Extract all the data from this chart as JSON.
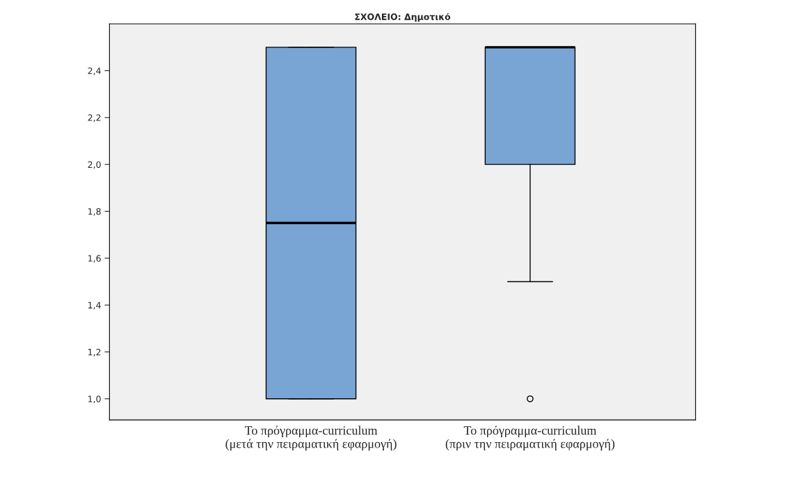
{
  "chart_data": {
    "type": "box",
    "title": "ΣΧΟΛΕΙΟ: Δημοτικό",
    "categories": [
      "Το πρόγραμμα-curriculum\n(μετά την πειραματική εφαρμογή)",
      "Το πρόγραμμα-curriculum\n(πριν την πειραματική εφαρμογή)"
    ],
    "boxes": [
      {
        "low": 1.0,
        "q1": 1.0,
        "median": 1.75,
        "q3": 2.5,
        "high": 2.5
      },
      {
        "low": 1.5,
        "q1": 2.0,
        "median": 2.5,
        "q3": 2.5,
        "high": 2.5,
        "outliers": [
          1.0
        ]
      }
    ],
    "color": "#79a5d5",
    "ylim": [
      0.91,
      2.6
    ],
    "yticks": [
      {
        "value": 1.0,
        "label": "1,0"
      },
      {
        "value": 1.2,
        "label": "1,2"
      },
      {
        "value": 1.4,
        "label": "1,4"
      },
      {
        "value": 1.6,
        "label": "1,6"
      },
      {
        "value": 1.8,
        "label": "1,8"
      },
      {
        "value": 2.0,
        "label": "2,0"
      },
      {
        "value": 2.2,
        "label": "2,2"
      },
      {
        "value": 2.4,
        "label": "2,4"
      }
    ],
    "grid": false
  }
}
